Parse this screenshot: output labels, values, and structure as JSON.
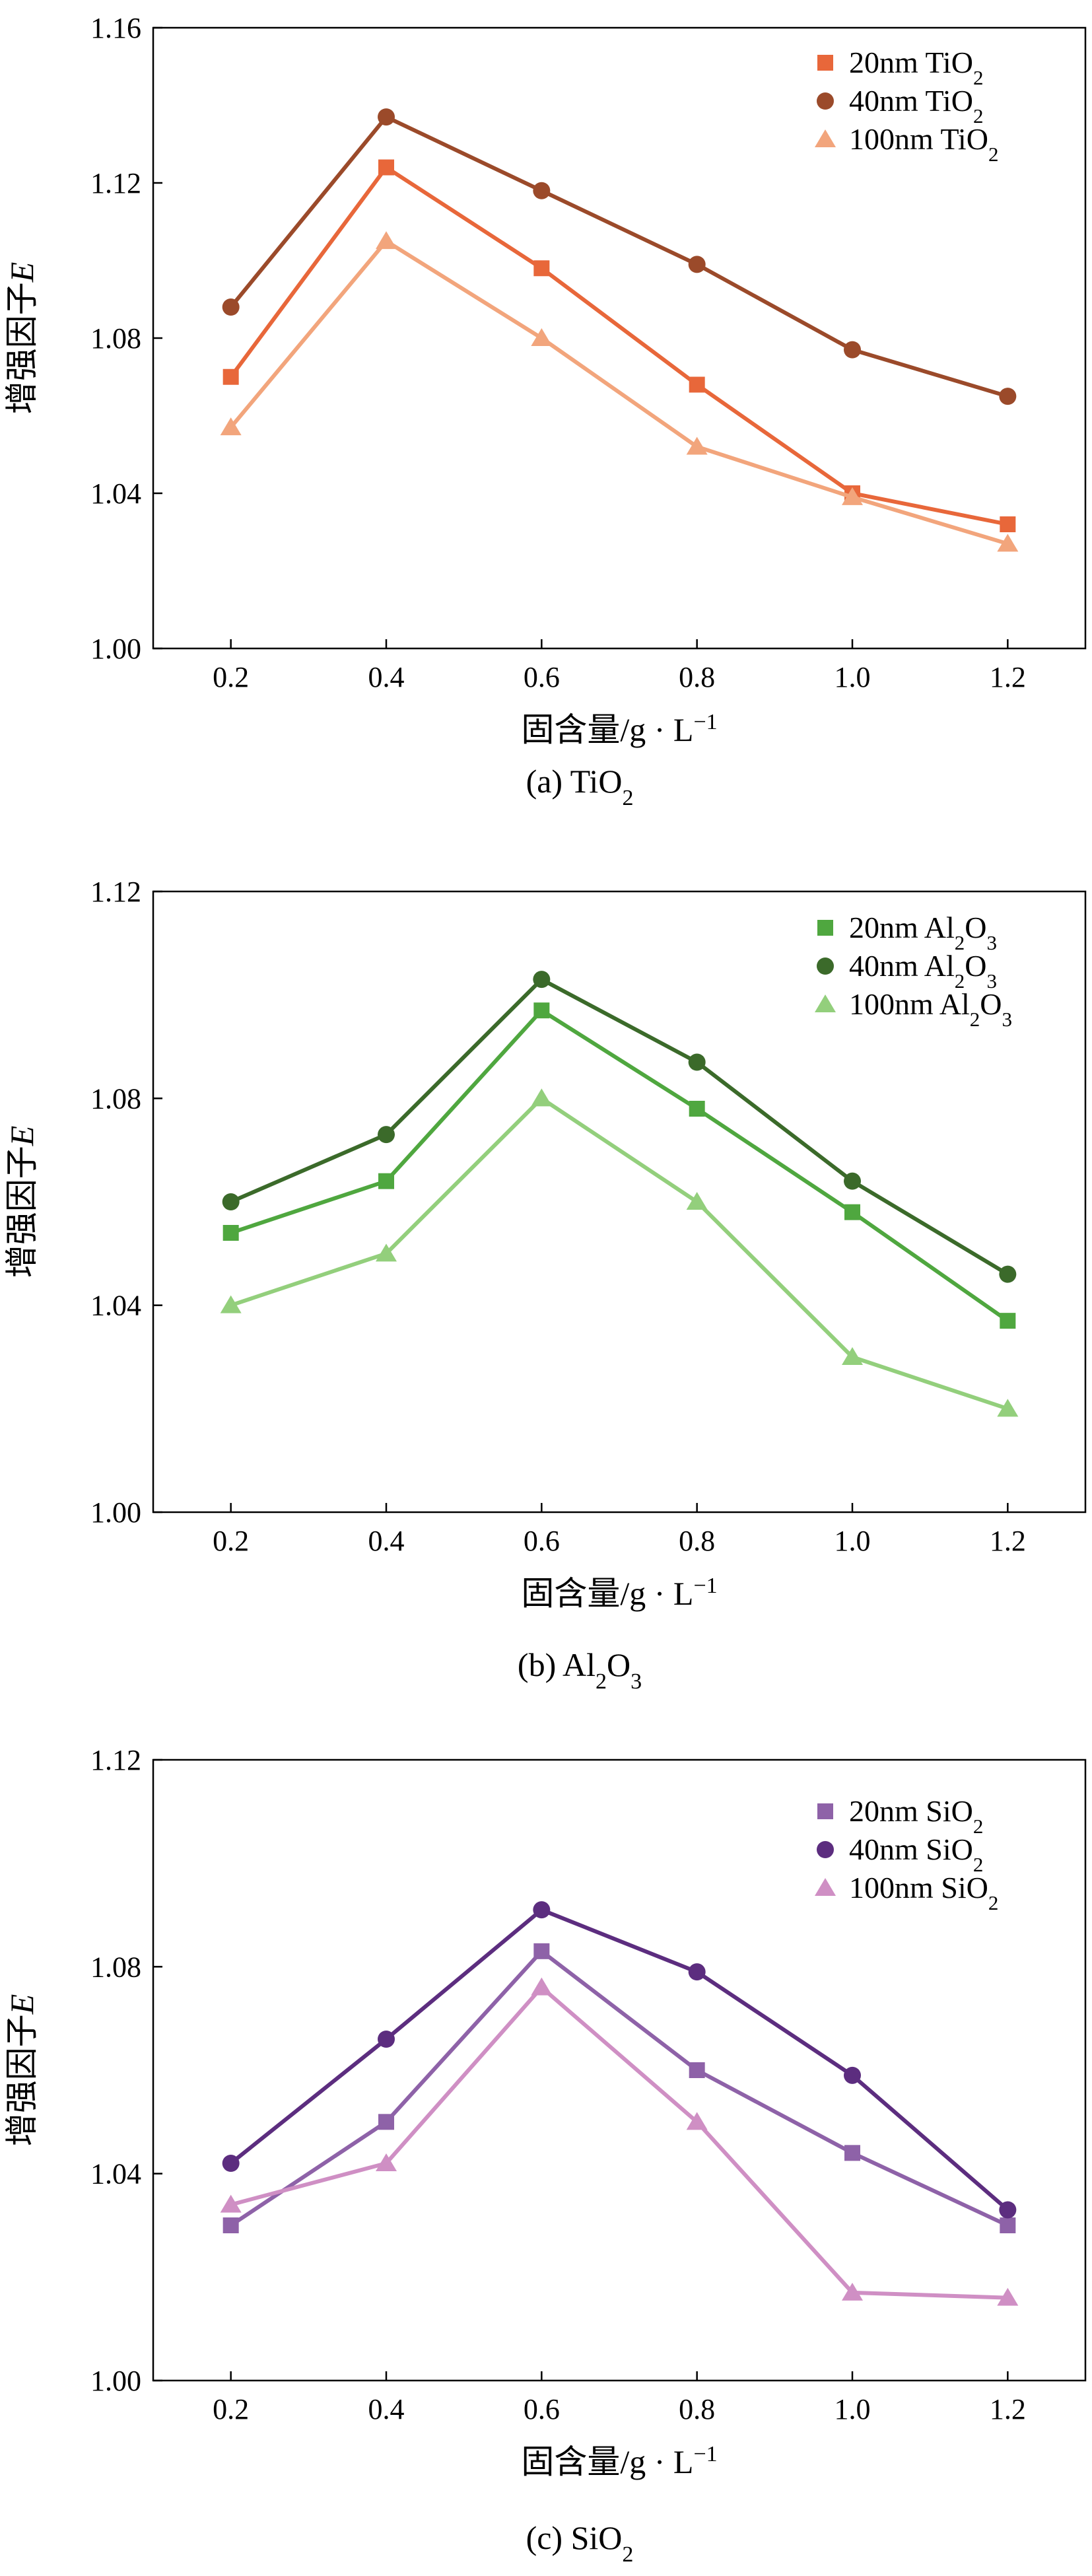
{
  "chart_data": [
    {
      "type": "line",
      "caption": "(a) TiO₂",
      "xlabel": "固含量/g · L⁻¹",
      "ylabel": "增强因子E",
      "x": [
        0.2,
        0.4,
        0.6,
        0.8,
        1.0,
        1.2
      ],
      "x_ticks": [
        "0.2",
        "0.4",
        "0.6",
        "0.8",
        "1.0",
        "1.2"
      ],
      "ylim": [
        1.0,
        1.16
      ],
      "y_ticks": [
        "1.00",
        "1.04",
        "1.08",
        "1.12",
        "1.16"
      ],
      "legend_position": "top-right",
      "grid": false,
      "series": [
        {
          "name": "20nm TiO₂",
          "marker": "square",
          "color": "#e8673a",
          "values": [
            1.07,
            1.124,
            1.098,
            1.068,
            1.04,
            1.032
          ]
        },
        {
          "name": "40nm TiO₂",
          "marker": "circle",
          "color": "#9b4a2a",
          "values": [
            1.088,
            1.137,
            1.118,
            1.099,
            1.077,
            1.065
          ]
        },
        {
          "name": "100nm TiO₂",
          "marker": "triangle",
          "color": "#f2a57c",
          "values": [
            1.057,
            1.105,
            1.08,
            1.052,
            1.039,
            1.027
          ]
        }
      ]
    },
    {
      "type": "line",
      "caption": "(b) Al₂O₃",
      "xlabel": "固含量/g · L⁻¹",
      "ylabel": "增强因子E",
      "x": [
        0.2,
        0.4,
        0.6,
        0.8,
        1.0,
        1.2
      ],
      "x_ticks": [
        "0.2",
        "0.4",
        "0.6",
        "0.8",
        "1.0",
        "1.2"
      ],
      "ylim": [
        1.0,
        1.12
      ],
      "y_ticks": [
        "1.00",
        "1.04",
        "1.08",
        "1.12"
      ],
      "legend_position": "top-right",
      "grid": false,
      "series": [
        {
          "name": "20nm Al₂O₃",
          "marker": "square",
          "color": "#4fa73f",
          "values": [
            1.054,
            1.064,
            1.097,
            1.078,
            1.058,
            1.037
          ]
        },
        {
          "name": "40nm Al₂O₃",
          "marker": "circle",
          "color": "#3b6a2a",
          "values": [
            1.06,
            1.073,
            1.103,
            1.087,
            1.064,
            1.046
          ]
        },
        {
          "name": "100nm Al₂O₃",
          "marker": "triangle",
          "color": "#93cf7c",
          "values": [
            1.04,
            1.05,
            1.08,
            1.06,
            1.03,
            1.02
          ]
        }
      ]
    },
    {
      "type": "line",
      "caption": "(c) SiO₂",
      "xlabel": "固含量/g · L⁻¹",
      "ylabel": "增强因子E",
      "x": [
        0.2,
        0.4,
        0.6,
        0.8,
        1.0,
        1.2
      ],
      "x_ticks": [
        "0.2",
        "0.4",
        "0.6",
        "0.8",
        "1.0",
        "1.2"
      ],
      "ylim": [
        1.0,
        1.12
      ],
      "y_ticks": [
        "1.00",
        "1.04",
        "1.08",
        "1.12"
      ],
      "legend_position": "top-right",
      "grid": false,
      "series": [
        {
          "name": "20nm SiO₂",
          "marker": "square",
          "color": "#8e62a8",
          "values": [
            1.03,
            1.05,
            1.083,
            1.06,
            1.044,
            1.03
          ]
        },
        {
          "name": "40nm SiO₂",
          "marker": "circle",
          "color": "#5c2d7f",
          "values": [
            1.042,
            1.066,
            1.091,
            1.079,
            1.059,
            1.033
          ]
        },
        {
          "name": "100nm SiO₂",
          "marker": "triangle",
          "color": "#cf8fc4",
          "values": [
            1.034,
            1.042,
            1.076,
            1.05,
            1.017,
            1.016
          ]
        }
      ]
    }
  ]
}
